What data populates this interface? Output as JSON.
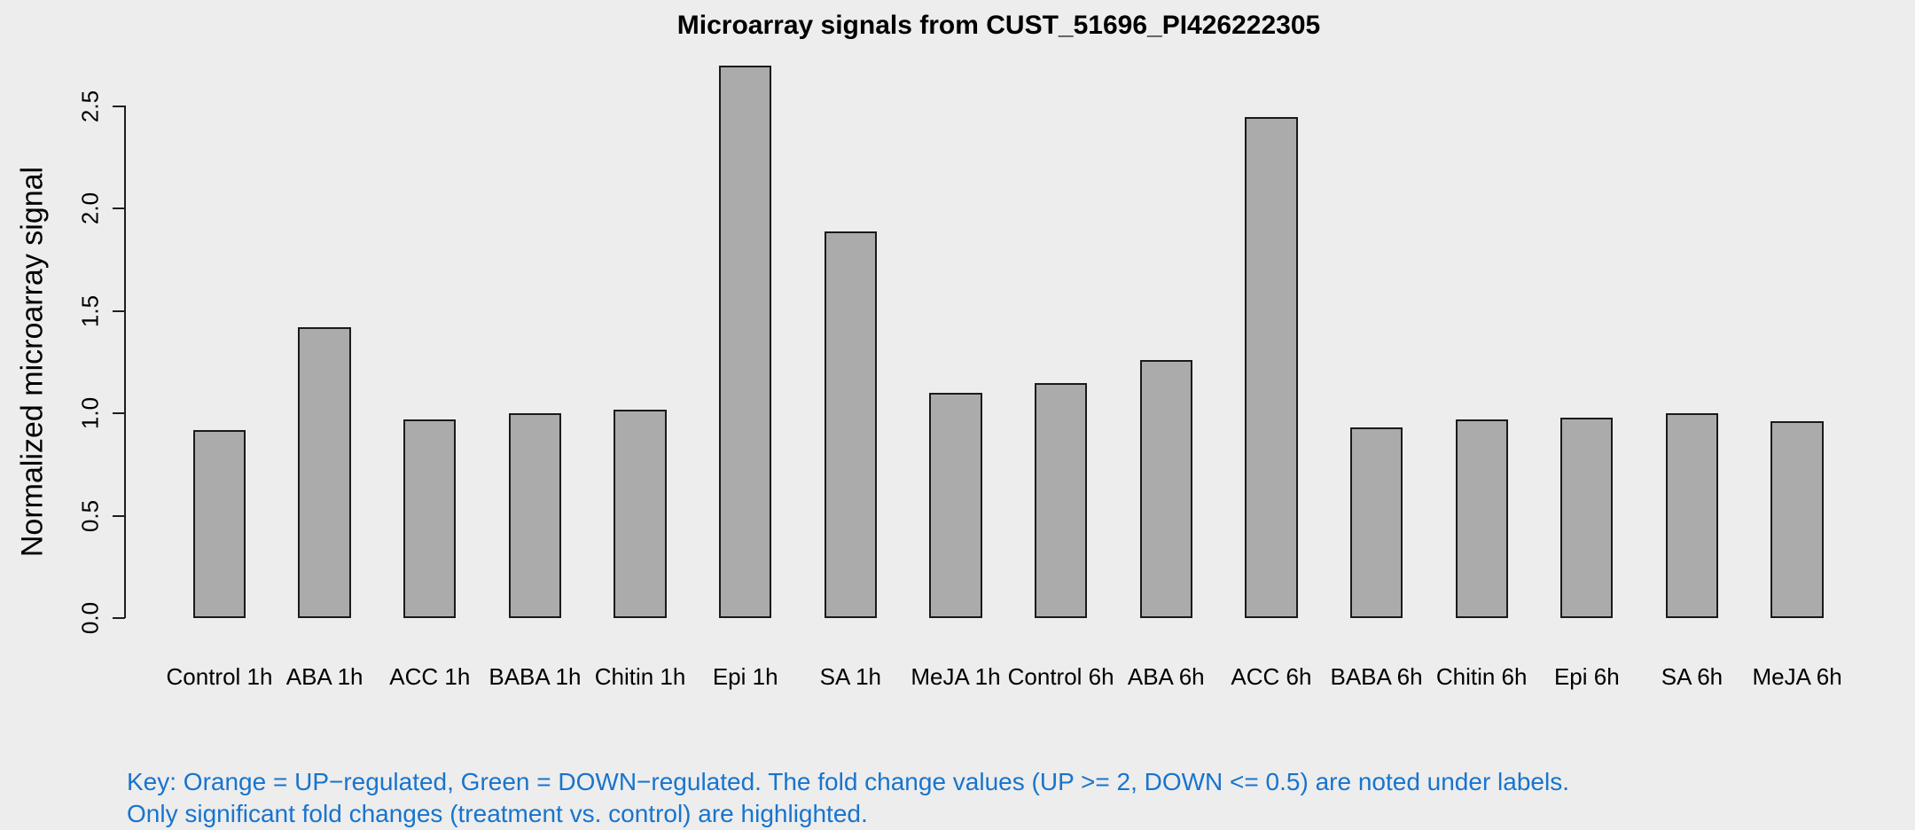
{
  "key": {
    "line1": "Key: Orange = UP−regulated, Green = DOWN−regulated. The fold change values (UP >= 2, DOWN <= 0.5) are noted under labels.",
    "line2": "Only significant fold changes (treatment vs. control) are highlighted."
  },
  "colors": {
    "background": "#EDEDED",
    "bar_fill": "#ABABAB",
    "bar_border": "#1A1A1A",
    "axis": "#1F1F1F",
    "key_text": "#1874CD",
    "title_text": "#000000"
  },
  "chart_data": {
    "type": "bar",
    "title": "Microarray signals from CUST_51696_PI426222305",
    "xlabel": "",
    "ylabel": "Normalized microarray signal",
    "categories": [
      "Control 1h",
      "ABA 1h",
      "ACC 1h",
      "BABA 1h",
      "Chitin 1h",
      "Epi 1h",
      "SA 1h",
      "MeJA 1h",
      "Control 6h",
      "ABA 6h",
      "ACC 6h",
      "BABA 6h",
      "Chitin 6h",
      "Epi 6h",
      "SA 6h",
      "MeJA 6h"
    ],
    "values": [
      0.92,
      1.42,
      0.97,
      1.0,
      1.02,
      2.7,
      1.89,
      1.1,
      1.15,
      1.26,
      2.45,
      0.93,
      0.97,
      0.98,
      1.0,
      0.96
    ],
    "yticks": [
      "0.0",
      "0.5",
      "1.0",
      "1.5",
      "2.0",
      "2.5"
    ],
    "ylim": [
      0,
      2.7
    ],
    "grid": false,
    "legend": "none"
  }
}
